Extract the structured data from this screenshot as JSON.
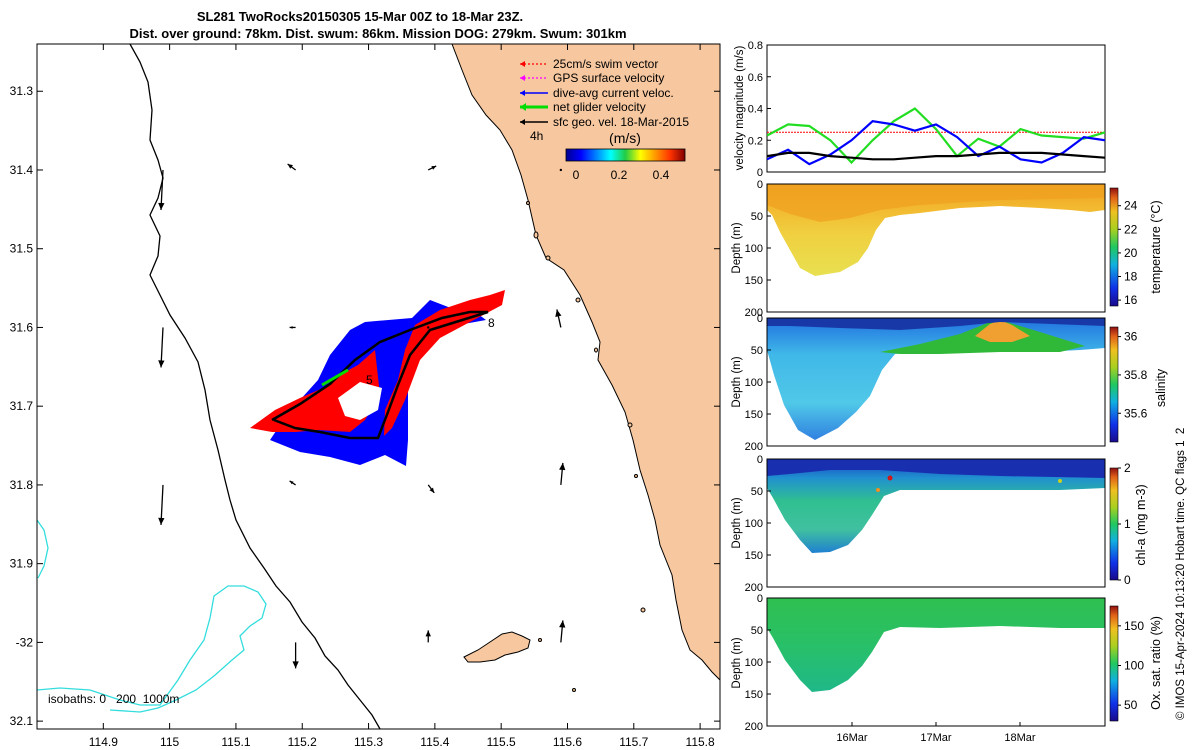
{
  "header": {
    "line1": "SL281 TwoRocks20150305 15-Mar 00Z to 18-Mar 23Z.",
    "line2": "Dist. over ground: 78km. Dist. swum: 86km. Mission DOG: 279km. Swum: 301km"
  },
  "credit": "© IMOS 15-Apr-2024 10:13:20 Hobart time. QC flags 1  2",
  "map": {
    "legend": [
      {
        "label": "25cm/s swim vector",
        "color": "#ff0000",
        "style": "dotted"
      },
      {
        "label": "GPS surface velocity",
        "color": "#ff00ff",
        "style": "dotted"
      },
      {
        "label": "dive-avg current veloc.",
        "color": "#0000ff",
        "style": "solid"
      },
      {
        "label": "net glider velocity",
        "color": "#00dd00",
        "style": "thick"
      },
      {
        "label": "sfc geo. vel. 18-Mar-2015",
        "color": "#000000",
        "style": "solid"
      }
    ],
    "colorbar": {
      "title": "(m/s)",
      "ticks": [
        "0",
        "0.2",
        "0.4"
      ],
      "range": [
        0,
        0.5
      ]
    },
    "isobaths_label": "isobaths: 0   200  1000m",
    "track_labels": [
      "4h",
      "5",
      "8"
    ],
    "colors": {
      "land": "#f7c8a0",
      "ocean": "#ffffff",
      "coast": "#000000",
      "isobath_shallow": "#000000",
      "isobath_deep": "#33dddd",
      "track_blue": "#0000ff",
      "track_red": "#ff0000"
    }
  },
  "chart_data": [
    {
      "type": "scatter",
      "name": "glider track map",
      "xlabel": "",
      "ylabel": "",
      "xlim": [
        114.8,
        115.83
      ],
      "ylim": [
        -32.11,
        -31.24
      ],
      "x_ticks": [
        114.9,
        115,
        115.1,
        115.2,
        115.3,
        115.4,
        115.5,
        115.6,
        115.7,
        115.8
      ],
      "x_tick_labels": [
        "114.9",
        "115",
        "115.1",
        "115.2",
        "115.3",
        "115.4",
        "115.5",
        "115.6",
        "115.7",
        "115.8"
      ],
      "y_ticks": [
        -31.3,
        -31.4,
        -31.5,
        -31.6,
        -31.7,
        -31.8,
        -31.9,
        -32,
        -32.1
      ],
      "y_tick_labels": [
        "31.3",
        "31.4",
        "31.5",
        "31.6",
        "31.7",
        "31.8",
        "31.9",
        "-32",
        "32.1"
      ],
      "track": {
        "lon": [
          115.16,
          115.36,
          115.5,
          115.44,
          115.32,
          115.26,
          115.3,
          115.16
        ],
        "lat": [
          -31.72,
          -31.74,
          -31.57,
          -31.62,
          -31.66,
          -31.67,
          -31.69,
          -31.72
        ]
      },
      "geo_vectors": {
        "lon": [
          114.99,
          115.19,
          115.39,
          115.59,
          114.99,
          115.19,
          115.39,
          115.59,
          114.99,
          115.19,
          115.39,
          115.59,
          115.19,
          115.39,
          115.59
        ],
        "lat": [
          -31.4,
          -31.4,
          -31.4,
          -31.4,
          -31.6,
          -31.6,
          -31.6,
          -31.6,
          -31.8,
          -31.8,
          -31.8,
          -31.8,
          -32.0,
          -32.0,
          -32.0
        ],
        "u": [
          -0.01,
          -0.04,
          0.04,
          0.0,
          -0.01,
          -0.03,
          0.0,
          -0.02,
          -0.01,
          -0.03,
          0.03,
          0.01,
          0.0,
          0.0,
          0.01
        ],
        "v": [
          -0.2,
          0.03,
          0.02,
          0.0,
          -0.2,
          0.0,
          0.0,
          0.09,
          -0.2,
          0.02,
          -0.04,
          0.11,
          -0.13,
          0.06,
          0.11
        ]
      }
    },
    {
      "type": "line",
      "name": "velocity magnitude",
      "title": "",
      "ylabel": "velocity magnitude (m/s)",
      "ylim": [
        0,
        0.8
      ],
      "y_ticks": [
        0,
        0.2,
        0.4,
        0.6,
        0.8
      ],
      "y_tick_labels": [
        "0",
        "0.2",
        "0.4",
        "0.6",
        "0.8"
      ],
      "x": [
        0,
        0.25,
        0.5,
        0.75,
        1.0,
        1.25,
        1.5,
        1.75,
        2.0,
        2.25,
        2.5,
        2.75,
        3.0,
        3.25,
        3.5,
        3.75,
        4.0
      ],
      "xlim": [
        0,
        4
      ],
      "series": [
        {
          "name": "swim vector 25cm/s",
          "color": "#ff0000",
          "values": [
            0.25,
            0.25,
            0.25,
            0.25,
            0.25,
            0.25,
            0.25,
            0.25,
            0.25,
            0.25,
            0.25,
            0.25,
            0.25,
            0.25,
            0.25,
            0.25,
            0.25
          ]
        },
        {
          "name": "net glider velocity",
          "color": "#22dd22",
          "values": [
            0.23,
            0.3,
            0.29,
            0.2,
            0.06,
            0.2,
            0.32,
            0.4,
            0.27,
            0.1,
            0.21,
            0.16,
            0.27,
            0.23,
            0.22,
            0.21,
            0.25
          ]
        },
        {
          "name": "dive-avg current",
          "color": "#0000ff",
          "values": [
            0.08,
            0.14,
            0.05,
            0.11,
            0.2,
            0.32,
            0.3,
            0.26,
            0.3,
            0.22,
            0.1,
            0.16,
            0.08,
            0.06,
            0.12,
            0.22,
            0.2
          ]
        },
        {
          "name": "sfc geo. vel.",
          "color": "#000000",
          "values": [
            0.1,
            0.12,
            0.12,
            0.1,
            0.09,
            0.08,
            0.08,
            0.09,
            0.1,
            0.1,
            0.11,
            0.12,
            0.12,
            0.12,
            0.11,
            0.1,
            0.09
          ]
        }
      ]
    },
    {
      "type": "heatmap",
      "name": "temperature",
      "ylabel": "Depth (m)",
      "ylim": [
        200,
        0
      ],
      "y_ticks": [
        0,
        50,
        100,
        150,
        200
      ],
      "y_tick_labels": [
        "0",
        "50",
        "100",
        "150",
        "200"
      ],
      "colorbar_label": "temperature (°C)",
      "colorbar_ticks": [
        "16",
        "18",
        "20",
        "22",
        "24"
      ],
      "colorbar_range": [
        15.5,
        25.5
      ],
      "bottom_depth": {
        "x": [
          0,
          0.15,
          0.25,
          0.35,
          0.45,
          0.5,
          0.55,
          0.65,
          0.75,
          0.85,
          1.0,
          1.5,
          2.0,
          2.5,
          3.0,
          3.5,
          4.0
        ],
        "depth": [
          20,
          40,
          80,
          110,
          140,
          140,
          135,
          120,
          90,
          40,
          30,
          30,
          28,
          25,
          25,
          30,
          30
        ]
      }
    },
    {
      "type": "heatmap",
      "name": "salinity",
      "ylabel": "Depth (m)",
      "ylim": [
        200,
        0
      ],
      "y_ticks": [
        0,
        50,
        100,
        150,
        200
      ],
      "y_tick_labels": [
        "0",
        "50",
        "100",
        "150",
        "200"
      ],
      "colorbar_label": "salinity",
      "colorbar_ticks": [
        "35.6",
        "35.8",
        "36"
      ],
      "colorbar_range": [
        35.45,
        36.05
      ]
    },
    {
      "type": "heatmap",
      "name": "chl-a",
      "ylabel": "Depth (m)",
      "ylim": [
        200,
        0
      ],
      "y_ticks": [
        0,
        50,
        100,
        150,
        200
      ],
      "y_tick_labels": [
        "0",
        "50",
        "100",
        "150",
        "200"
      ],
      "colorbar_label": "chl-a (mg m-3)",
      "colorbar_ticks": [
        "0",
        "1",
        "2"
      ],
      "colorbar_range": [
        0,
        2
      ]
    },
    {
      "type": "heatmap",
      "name": "oxygen saturation",
      "ylabel": "Depth (m)",
      "ylim": [
        200,
        0
      ],
      "y_ticks": [
        0,
        50,
        100,
        150,
        200
      ],
      "y_tick_labels": [
        "0",
        "50",
        "100",
        "150",
        "200"
      ],
      "x_tick_labels": [
        "16Mar",
        "17Mar",
        "18Mar"
      ],
      "colorbar_label": "Ox. sat. ratio (%)",
      "colorbar_ticks": [
        "50",
        "100",
        "150"
      ],
      "colorbar_range": [
        30,
        175
      ]
    }
  ]
}
